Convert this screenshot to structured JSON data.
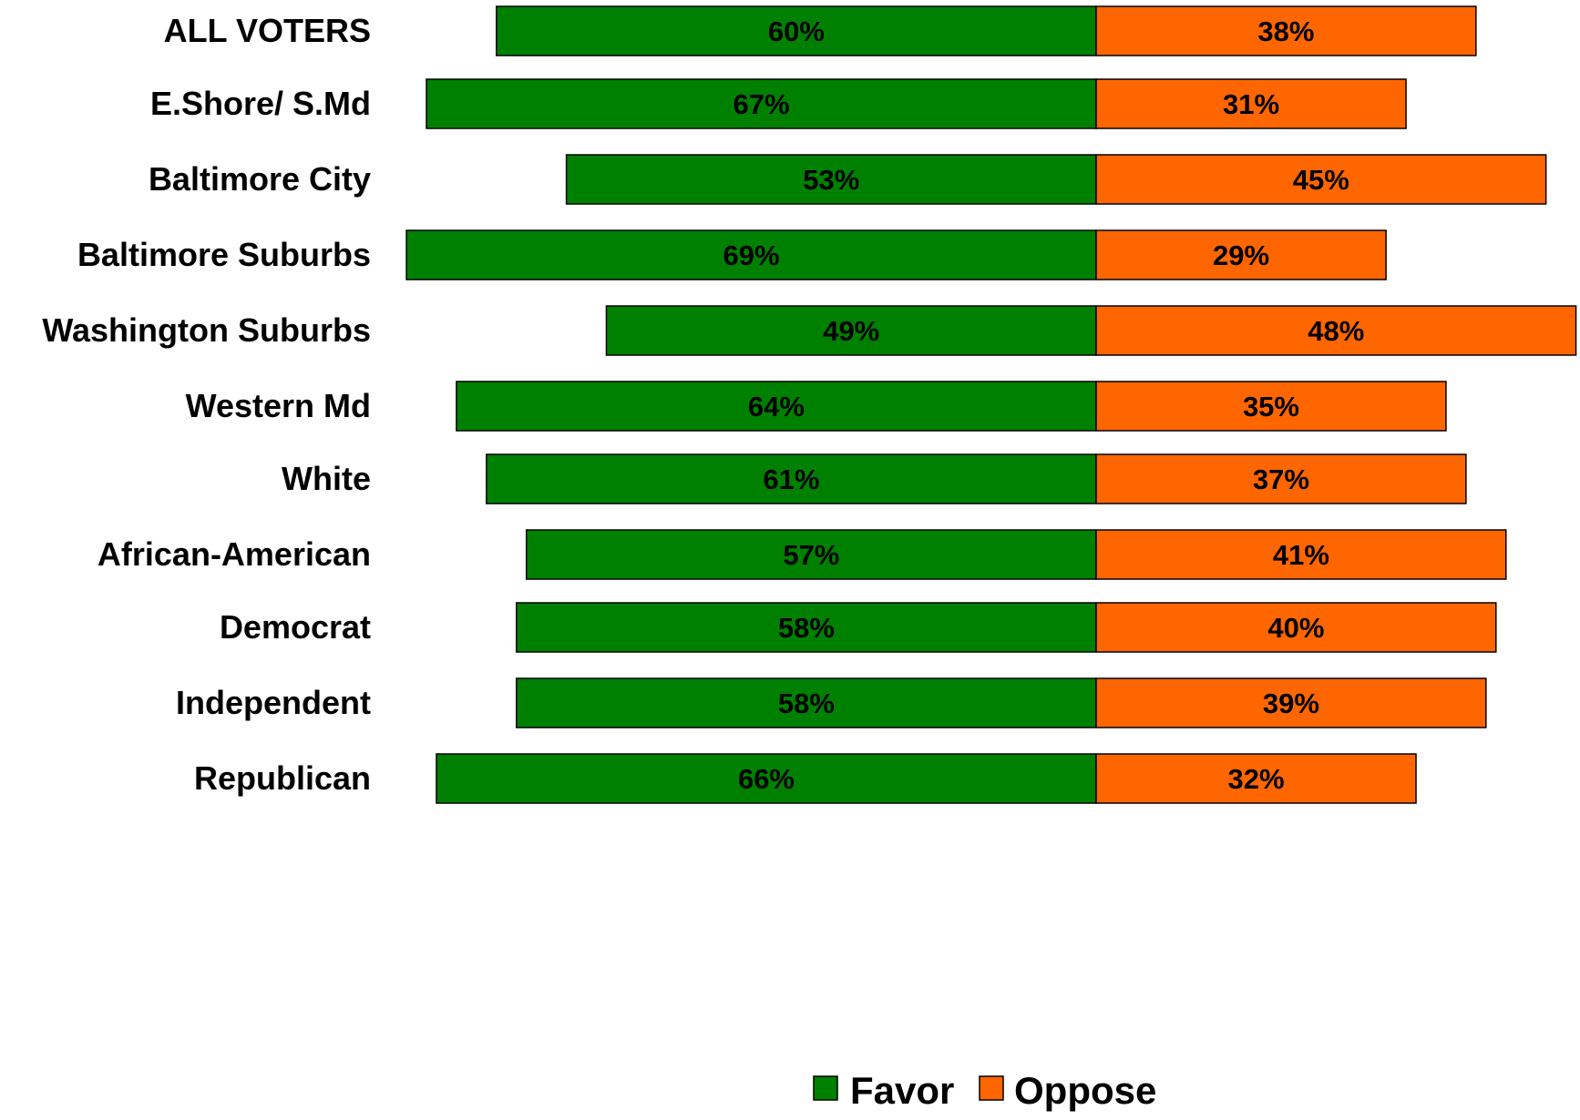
{
  "chart_data": {
    "type": "bar",
    "orientation": "horizontal-diverging",
    "categories": [
      "ALL VOTERS",
      "E.Shore/ S.Md",
      "Baltimore City",
      "Baltimore Suburbs",
      "Washington Suburbs",
      "Western Md",
      "White",
      "African-American",
      "Democrat",
      "Independent",
      "Republican"
    ],
    "groups": [
      [
        0
      ],
      [
        1,
        2,
        3,
        4,
        5
      ],
      [
        6,
        7
      ],
      [
        8,
        9,
        10
      ]
    ],
    "series": [
      {
        "name": "Favor",
        "color": "#008000",
        "values": [
          60,
          67,
          53,
          69,
          49,
          64,
          61,
          57,
          58,
          58,
          66
        ],
        "labels": [
          "60%",
          "67%",
          "53%",
          "69%",
          "49%",
          "64%",
          "61%",
          "57%",
          "58%",
          "58%",
          "66%"
        ]
      },
      {
        "name": "Oppose",
        "color": "#FF6600",
        "values": [
          38,
          31,
          45,
          29,
          48,
          35,
          37,
          41,
          40,
          39,
          32
        ],
        "labels": [
          "38%",
          "31%",
          "45%",
          "29%",
          "48%",
          "35%",
          "37%",
          "41%",
          "40%",
          "39%",
          "32%"
        ]
      }
    ],
    "legend_position": "bottom-center",
    "grid": false
  }
}
